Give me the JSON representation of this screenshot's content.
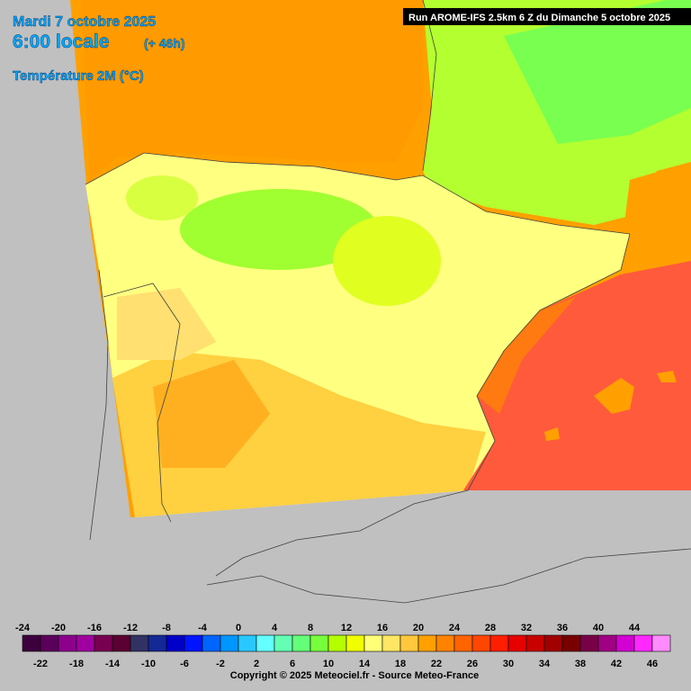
{
  "header": {
    "date": "Mardi 7 octobre 2025",
    "time": "6:00 locale",
    "lead": "(+ 46h)",
    "variable": "Température 2M (°C)"
  },
  "run": "Run AROME-IFS 2.5km 6 Z du Dimanche 5 octobre 2025",
  "legend": {
    "labels": [
      -24,
      -22,
      -20,
      -18,
      -16,
      -14,
      -12,
      -10,
      -8,
      -6,
      -4,
      -2,
      0,
      2,
      4,
      6,
      8,
      10,
      12,
      14,
      16,
      18,
      20,
      22,
      24,
      26,
      28,
      30,
      32,
      34,
      36,
      38,
      40,
      42,
      44,
      46
    ],
    "colors": [
      "#3c003c",
      "#5a005a",
      "#8c008c",
      "#a000a0",
      "#780050",
      "#5a0032",
      "#303264",
      "#142896",
      "#0000c8",
      "#0014ff",
      "#0064ff",
      "#0096ff",
      "#28c8ff",
      "#64ffff",
      "#64ffb4",
      "#64ff78",
      "#78ff3c",
      "#b4ff00",
      "#f0ff00",
      "#ffff78",
      "#ffe664",
      "#ffc83c",
      "#ffa000",
      "#ff8200",
      "#ff6400",
      "#ff4600",
      "#ff1e00",
      "#e60000",
      "#c80000",
      "#a00000",
      "#780000",
      "#780046",
      "#a00082",
      "#d200d2",
      "#ff28ff",
      "#ff8cff"
    ]
  },
  "copyright": "Copyright © 2025 Meteociel.fr - Source Meteo-France"
}
